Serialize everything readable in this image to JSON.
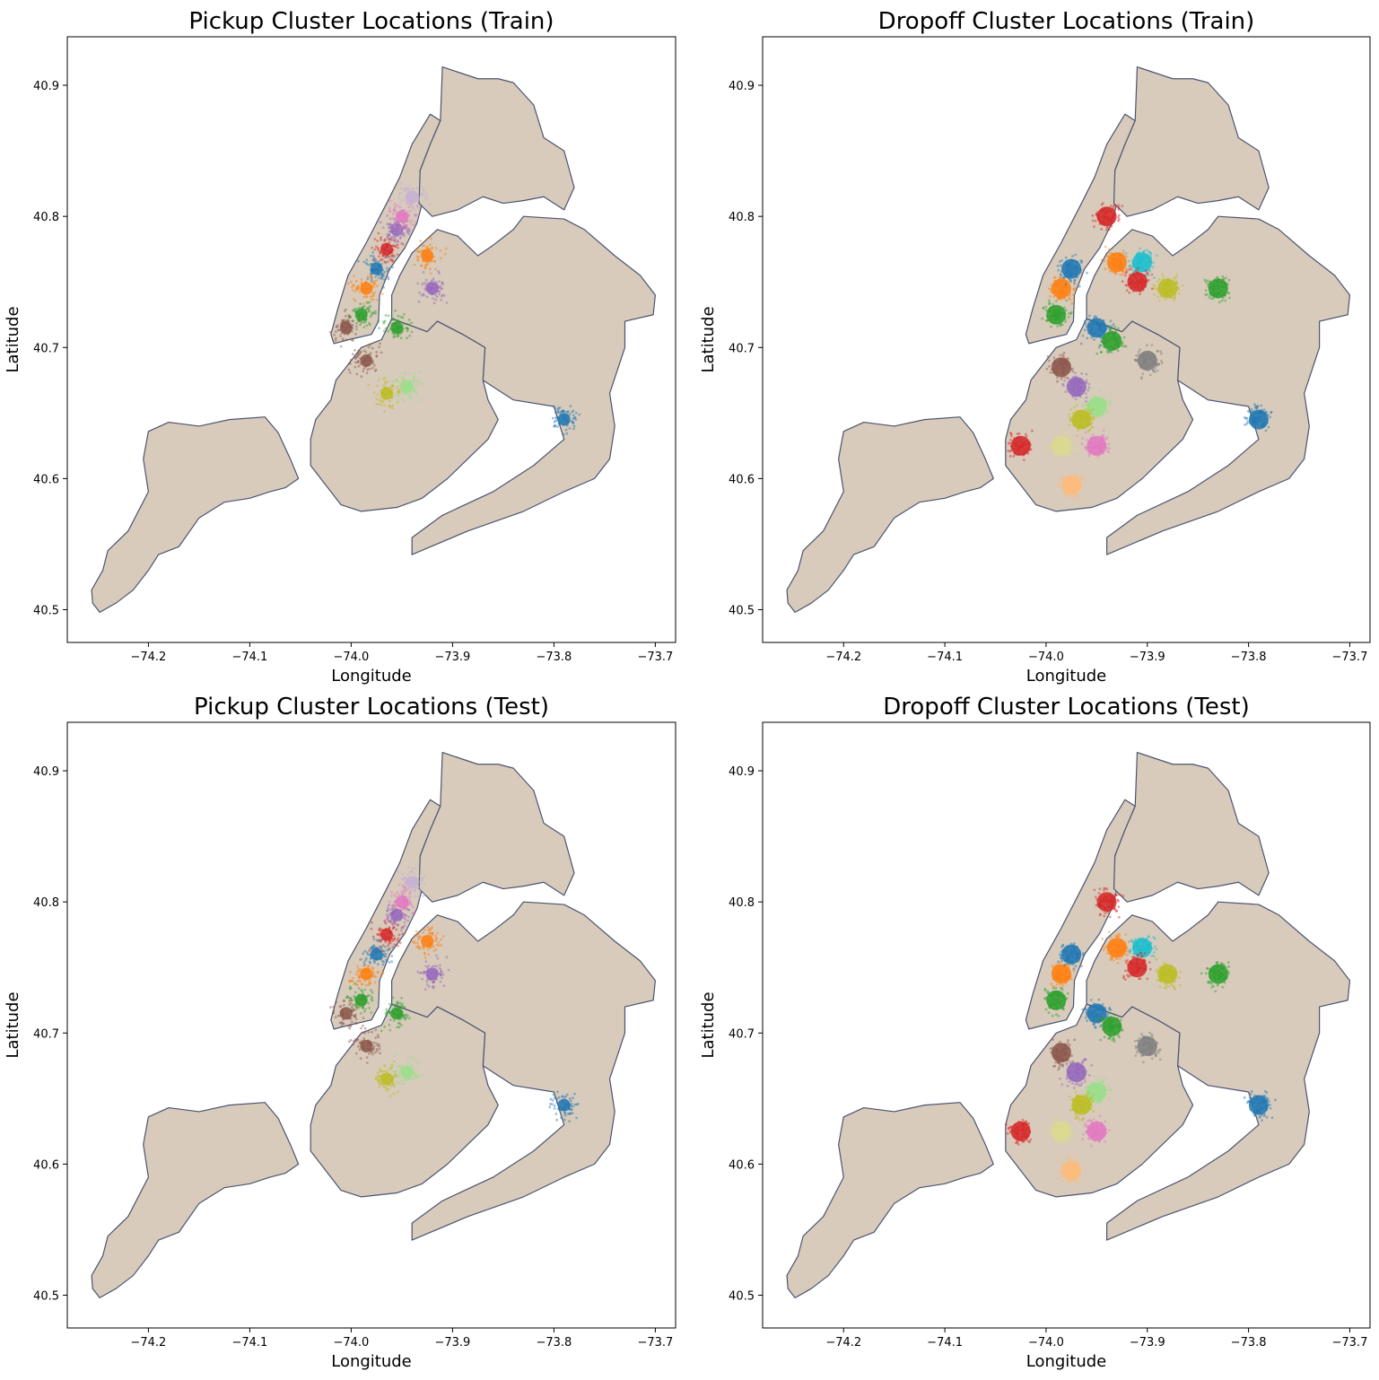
{
  "figure": {
    "panels": [
      {
        "title": "Pickup Cluster Locations (Train)",
        "kind": "pickup",
        "set": "train"
      },
      {
        "title": "Dropoff Cluster Locations (Train)",
        "kind": "dropoff",
        "set": "train"
      },
      {
        "title": "Pickup Cluster Locations (Test)",
        "kind": "pickup",
        "set": "test"
      },
      {
        "title": "Dropoff Cluster Locations (Test)",
        "kind": "dropoff",
        "set": "test"
      }
    ],
    "xlabel": "Longitude",
    "ylabel": "Latitude",
    "xticks": [
      "−74.2",
      "−74.1",
      "−74.0",
      "−73.9",
      "−73.8",
      "−73.7"
    ],
    "yticks": [
      "40.5",
      "40.6",
      "40.7",
      "40.8",
      "40.9"
    ]
  },
  "chart_data": {
    "type": "scatter",
    "xlim": [
      -74.28,
      -73.68
    ],
    "ylim": [
      40.475,
      40.937
    ],
    "xtick_values": [
      -74.2,
      -74.1,
      -74.0,
      -73.9,
      -73.8,
      -73.7
    ],
    "ytick_values": [
      40.5,
      40.6,
      40.7,
      40.8,
      40.9
    ],
    "basemap": "New York City boroughs",
    "basemap_fill": "#d8cbbb",
    "basemap_edge": "#4a5470",
    "palette": [
      "#1f77b4",
      "#ff7f0e",
      "#2ca02c",
      "#d62728",
      "#9467bd",
      "#8c564b",
      "#e377c2",
      "#7f7f7f",
      "#bcbd22",
      "#17becf",
      "#aec7e8",
      "#ffbb78",
      "#98df8a",
      "#ff9896",
      "#c5b0d5",
      "#c49c94",
      "#f7b6d2",
      "#c7c7c7",
      "#dbdb8d",
      "#9edae5"
    ],
    "pickup_clusters": [
      {
        "lon": -73.985,
        "lat": 40.745,
        "color": "#ff7f0e"
      },
      {
        "lon": -73.975,
        "lat": 40.76,
        "color": "#1f77b4"
      },
      {
        "lon": -73.99,
        "lat": 40.725,
        "color": "#2ca02c"
      },
      {
        "lon": -73.965,
        "lat": 40.775,
        "color": "#d62728"
      },
      {
        "lon": -73.955,
        "lat": 40.79,
        "color": "#9467bd"
      },
      {
        "lon": -74.005,
        "lat": 40.715,
        "color": "#8c564b"
      },
      {
        "lon": -73.95,
        "lat": 40.8,
        "color": "#e377c2"
      },
      {
        "lon": -73.94,
        "lat": 40.815,
        "color": "#c5b0d5"
      },
      {
        "lon": -73.925,
        "lat": 40.77,
        "color": "#ff7f0e"
      },
      {
        "lon": -73.92,
        "lat": 40.745,
        "color": "#9467bd"
      },
      {
        "lon": -73.955,
        "lat": 40.715,
        "color": "#2ca02c"
      },
      {
        "lon": -73.985,
        "lat": 40.69,
        "color": "#8c564b"
      },
      {
        "lon": -73.965,
        "lat": 40.665,
        "color": "#bcbd22"
      },
      {
        "lon": -73.945,
        "lat": 40.67,
        "color": "#98df8a"
      },
      {
        "lon": -73.79,
        "lat": 40.645,
        "color": "#1f77b4"
      }
    ],
    "dropoff_clusters": [
      {
        "lon": -73.985,
        "lat": 40.745,
        "color": "#ff7f0e"
      },
      {
        "lon": -73.975,
        "lat": 40.76,
        "color": "#1f77b4"
      },
      {
        "lon": -73.99,
        "lat": 40.725,
        "color": "#2ca02c"
      },
      {
        "lon": -73.94,
        "lat": 40.8,
        "color": "#d62728"
      },
      {
        "lon": -73.93,
        "lat": 40.765,
        "color": "#ff7f0e"
      },
      {
        "lon": -73.905,
        "lat": 40.765,
        "color": "#17becf"
      },
      {
        "lon": -73.88,
        "lat": 40.745,
        "color": "#bcbd22"
      },
      {
        "lon": -73.91,
        "lat": 40.75,
        "color": "#d62728"
      },
      {
        "lon": -73.95,
        "lat": 40.715,
        "color": "#1f77b4"
      },
      {
        "lon": -73.935,
        "lat": 40.705,
        "color": "#2ca02c"
      },
      {
        "lon": -73.9,
        "lat": 40.69,
        "color": "#7f7f7f"
      },
      {
        "lon": -73.985,
        "lat": 40.685,
        "color": "#8c564b"
      },
      {
        "lon": -73.97,
        "lat": 40.67,
        "color": "#9467bd"
      },
      {
        "lon": -73.95,
        "lat": 40.655,
        "color": "#98df8a"
      },
      {
        "lon": -73.965,
        "lat": 40.645,
        "color": "#bcbd22"
      },
      {
        "lon": -74.025,
        "lat": 40.625,
        "color": "#d62728"
      },
      {
        "lon": -73.985,
        "lat": 40.625,
        "color": "#dbdb8d"
      },
      {
        "lon": -73.95,
        "lat": 40.625,
        "color": "#e377c2"
      },
      {
        "lon": -73.975,
        "lat": 40.595,
        "color": "#ffbb78"
      },
      {
        "lon": -73.83,
        "lat": 40.745,
        "color": "#2ca02c"
      },
      {
        "lon": -73.79,
        "lat": 40.645,
        "color": "#1f77b4"
      }
    ]
  }
}
